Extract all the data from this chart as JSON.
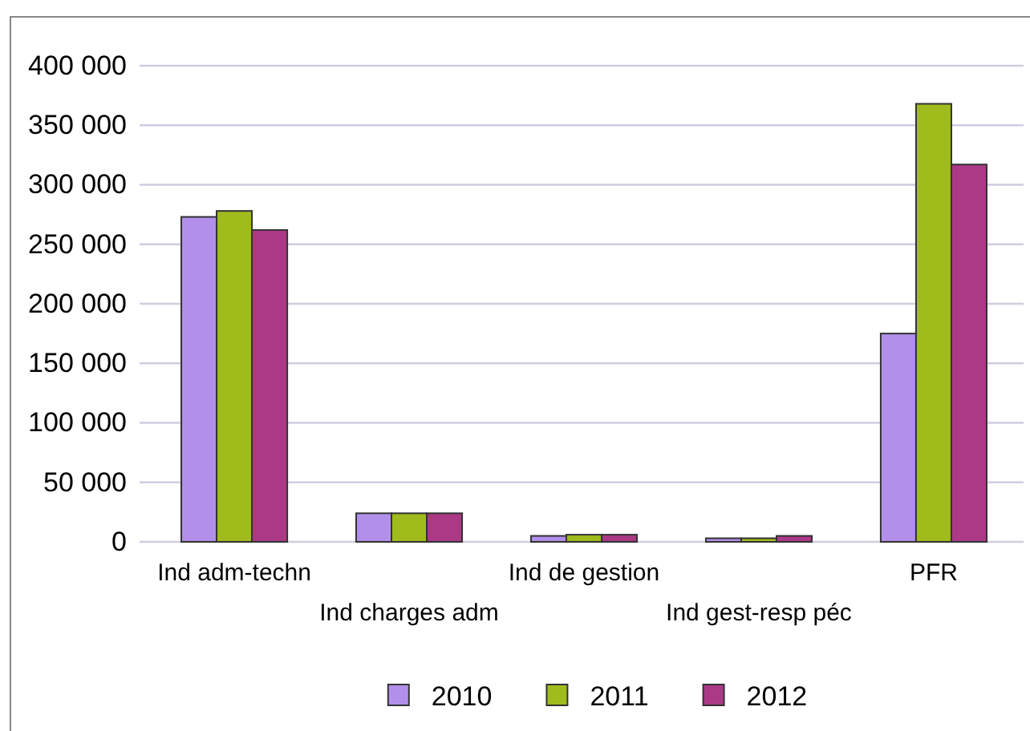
{
  "chart_data": {
    "type": "bar",
    "categories": [
      "Ind adm-techn",
      "Ind charges adm",
      "Ind de gestion",
      "Ind gest-resp péc",
      "PFR"
    ],
    "series": [
      {
        "name": "2010",
        "color": "#b18fea",
        "values": [
          273000,
          24000,
          5000,
          3000,
          175000
        ]
      },
      {
        "name": "2011",
        "color": "#9fbc1c",
        "values": [
          278000,
          24000,
          6000,
          3000,
          368000
        ]
      },
      {
        "name": "2012",
        "color": "#ab3986",
        "values": [
          262000,
          24000,
          6000,
          5000,
          317000
        ]
      }
    ],
    "ylim": [
      0,
      400000
    ],
    "yticks": [
      {
        "value": 0,
        "label": "0"
      },
      {
        "value": 50000,
        "label": "50 000"
      },
      {
        "value": 100000,
        "label": "100 000"
      },
      {
        "value": 150000,
        "label": "150 000"
      },
      {
        "value": 200000,
        "label": "200 000"
      },
      {
        "value": 250000,
        "label": "250 000"
      },
      {
        "value": 300000,
        "label": "300 000"
      },
      {
        "value": 350000,
        "label": "350 000"
      },
      {
        "value": 400000,
        "label": "400 000"
      }
    ],
    "grid": "y",
    "legend": "bottom"
  }
}
